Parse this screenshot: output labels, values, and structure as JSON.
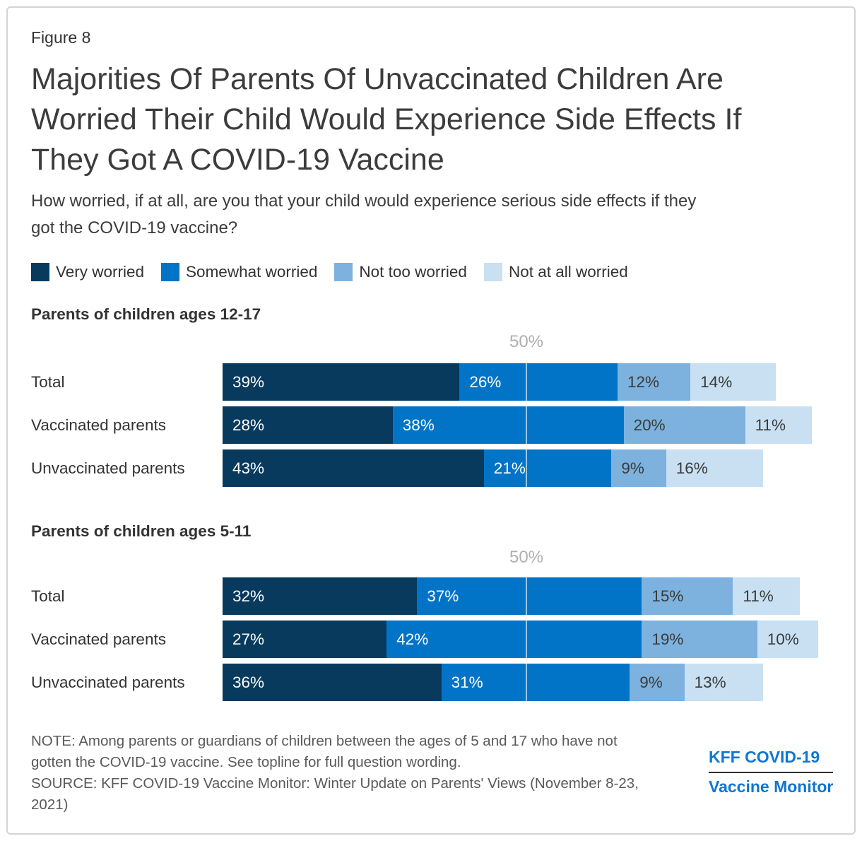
{
  "page": {
    "figure_label": "Figure 8",
    "title": "Majorities Of Parents Of Unvaccinated Children Are Worried Their Child Would Experience Side Effects If They Got A COVID-19 Vaccine",
    "title_lines": [
      "Majorities Of Parents Of Unvaccinated Children Are",
      "Worried Their Child Would Experience Side Effects If",
      "They Got A COVID-19 Vaccine"
    ],
    "subtitle_lines": [
      "How worried, if at all, are you that your child would experience serious side effects if they",
      "got the COVID-19 vaccine?"
    ]
  },
  "colors": {
    "very_worried": "#083a5e",
    "somewhat_worried": "#0274c7",
    "not_too_worried": "#7db2de",
    "not_at_all_worried": "#c8e0f2",
    "label_on_dark": "#ffffff",
    "label_on_light": "#3a3a3a",
    "axis_label_gray": "#afafaf",
    "logo_blue": "#1076d2"
  },
  "legend": [
    {
      "label": "Very worried",
      "color": "#083a5e"
    },
    {
      "label": "Somewhat worried",
      "color": "#0274c7"
    },
    {
      "label": "Not too worried",
      "color": "#7db2de"
    },
    {
      "label": "Not at all worried",
      "color": "#c8e0f2"
    }
  ],
  "chart_data": [
    {
      "type": "bar",
      "subtype": "horizontal-stacked",
      "title": "Parents of children ages 12-17",
      "categories": [
        "Total",
        "Vaccinated parents",
        "Unvaccinated parents"
      ],
      "series": [
        {
          "name": "Very worried",
          "color": "#083a5e",
          "label_color": "#ffffff",
          "values": [
            39,
            28,
            43
          ]
        },
        {
          "name": "Somewhat worried",
          "color": "#0274c7",
          "label_color": "#ffffff",
          "values": [
            26,
            38,
            21
          ]
        },
        {
          "name": "Not too worried",
          "color": "#7db2de",
          "label_color": "#3a3a3a",
          "values": [
            12,
            20,
            9
          ]
        },
        {
          "name": "Not at all worried",
          "color": "#c8e0f2",
          "label_color": "#3a3a3a",
          "values": [
            14,
            11,
            16
          ]
        }
      ],
      "axis_marker": {
        "value": 50,
        "label": "50%"
      },
      "xlim": [
        0,
        100
      ],
      "grid": false,
      "legend_position": "top"
    },
    {
      "type": "bar",
      "subtype": "horizontal-stacked",
      "title": "Parents of children ages 5-11",
      "categories": [
        "Total",
        "Vaccinated parents",
        "Unvaccinated parents"
      ],
      "series": [
        {
          "name": "Very worried",
          "color": "#083a5e",
          "label_color": "#ffffff",
          "values": [
            32,
            27,
            36
          ]
        },
        {
          "name": "Somewhat worried",
          "color": "#0274c7",
          "label_color": "#ffffff",
          "values": [
            37,
            42,
            31
          ]
        },
        {
          "name": "Not too worried",
          "color": "#7db2de",
          "label_color": "#3a3a3a",
          "values": [
            15,
            19,
            9
          ]
        },
        {
          "name": "Not at all worried",
          "color": "#c8e0f2",
          "label_color": "#3a3a3a",
          "values": [
            11,
            10,
            13
          ]
        }
      ],
      "axis_marker": {
        "value": 50,
        "label": "50%"
      },
      "xlim": [
        0,
        100
      ],
      "grid": false,
      "legend_position": "top"
    }
  ],
  "footer": {
    "note_lines": [
      "NOTE: Among parents or guardians of children between the ages of 5 and 17 who have not",
      "gotten the COVID-19 vaccine. See topline for full question wording."
    ],
    "source_lines": [
      "SOURCE: KFF COVID-19 Vaccine Monitor: Winter Update on Parents' Views (November 8-23,",
      "2021)"
    ],
    "logo_line1": "KFF COVID-19",
    "logo_line2": "Vaccine Monitor"
  }
}
